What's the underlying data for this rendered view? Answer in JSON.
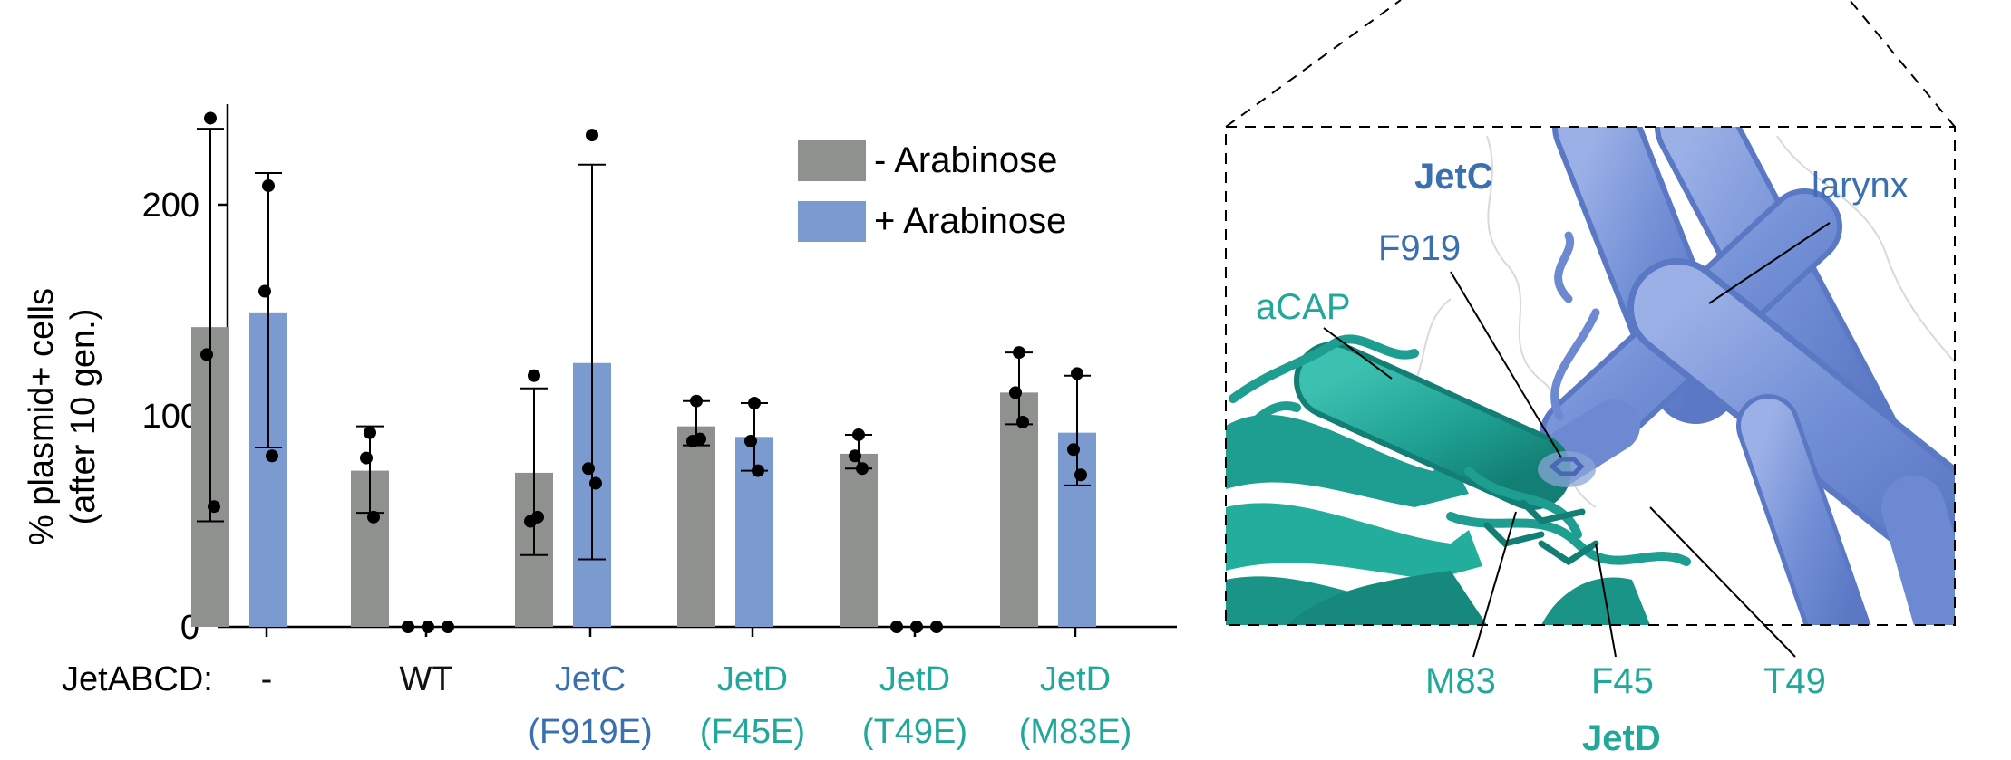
{
  "chart_data": {
    "type": "bar",
    "ylabel": "% plasmid+ cells",
    "ylabel_sub": "(after 10 gen.)",
    "ylim": [
      0,
      250
    ],
    "yticks": [
      0,
      100,
      200
    ],
    "row_label": "JetABCD:",
    "categories": [
      {
        "line1": "-",
        "line2": "",
        "color": "#111111"
      },
      {
        "line1": "WT",
        "line2": "",
        "color": "#111111"
      },
      {
        "line1": "JetC",
        "line2": "(F919E)",
        "color": "#3a6fb0"
      },
      {
        "line1": "JetD",
        "line2": "(F45E)",
        "color": "#22a89a"
      },
      {
        "line1": "JetD",
        "line2": "(T49E)",
        "color": "#22a89a"
      },
      {
        "line1": "JetD",
        "line2": "(M83E)",
        "color": "#22a89a"
      }
    ],
    "legend_position": "top-right",
    "series": [
      {
        "name": "- Arabinose",
        "color": "#8f918f",
        "values": [
          142,
          74,
          73,
          95,
          82,
          111
        ],
        "err_low": [
          50,
          54,
          34,
          86,
          75,
          96
        ],
        "err_high": [
          236,
          95,
          113,
          107,
          91,
          130
        ],
        "points": [
          [
            241,
            129,
            57
          ],
          [
            92,
            80,
            52
          ],
          [
            119,
            50,
            52
          ],
          [
            107,
            88,
            89
          ],
          [
            91,
            81,
            75
          ],
          [
            130,
            111,
            97
          ]
        ]
      },
      {
        "name": "+ Arabinose",
        "color": "#7b9bd0",
        "values": [
          149,
          0,
          125,
          90,
          0,
          92
        ],
        "err_low": [
          85,
          0,
          32,
          74,
          0,
          67
        ],
        "err_high": [
          215,
          0,
          219,
          106,
          0,
          119
        ],
        "points": [
          [
            209,
            159,
            81
          ],
          [
            0,
            0,
            0
          ],
          [
            233,
            75,
            68
          ],
          [
            106,
            88,
            74
          ],
          [
            0,
            0,
            0
          ],
          [
            120,
            84,
            72
          ]
        ]
      }
    ]
  },
  "structure_panel": {
    "labels": {
      "jetc": "JetC",
      "larynx": "larynx",
      "f919": "F919",
      "acap": "aCAP",
      "m83": "M83",
      "f45": "F45",
      "t49": "T49",
      "jetd": "JetD"
    },
    "colors": {
      "jetc": "#7a95d8",
      "jetc_label": "#3a6fb0",
      "jetd": "#22a89a"
    }
  }
}
